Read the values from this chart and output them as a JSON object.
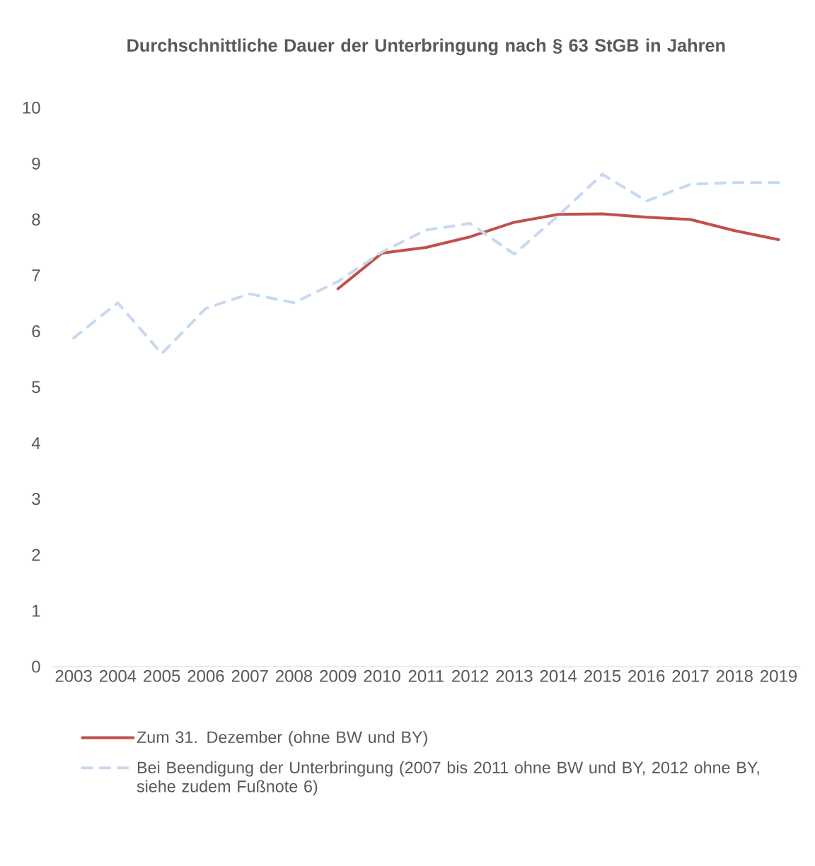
{
  "chart_data": {
    "type": "line",
    "title": "Durchschnittliche Dauer der Unterbringung nach § 63 StGB in Jahren",
    "categories": [
      "2003",
      "2004",
      "2005",
      "2006",
      "2007",
      "2008",
      "2009",
      "2010",
      "2011",
      "2012",
      "2013",
      "2014",
      "2015",
      "2016",
      "2017",
      "2018",
      "2019"
    ],
    "series": [
      {
        "name": "Zum 31. Dezember (ohne BW und BY)",
        "color": "#c0504d",
        "line_style": "solid",
        "values": [
          null,
          null,
          null,
          null,
          null,
          null,
          6.76,
          7.4,
          7.5,
          7.69,
          7.95,
          8.09,
          8.1,
          8.04,
          8.0,
          7.8,
          7.64
        ]
      },
      {
        "name": "Bei Beendigung der Unterbringung (2007 bis 2011 ohne BW und BY, 2012 ohne BY, siehe zudem Fußnote 6)",
        "color": "#c6d9f0",
        "line_style": "dashed",
        "values": [
          5.88,
          6.51,
          5.6,
          6.41,
          6.67,
          6.51,
          6.89,
          7.42,
          7.81,
          7.93,
          7.38,
          8.07,
          8.81,
          8.33,
          8.63,
          8.66,
          8.66
        ]
      }
    ],
    "ylim": [
      0,
      10
    ],
    "yticks": [
      0,
      1,
      2,
      3,
      4,
      5,
      6,
      7,
      8,
      9,
      10
    ],
    "legend": "bottom",
    "marker": "none"
  }
}
